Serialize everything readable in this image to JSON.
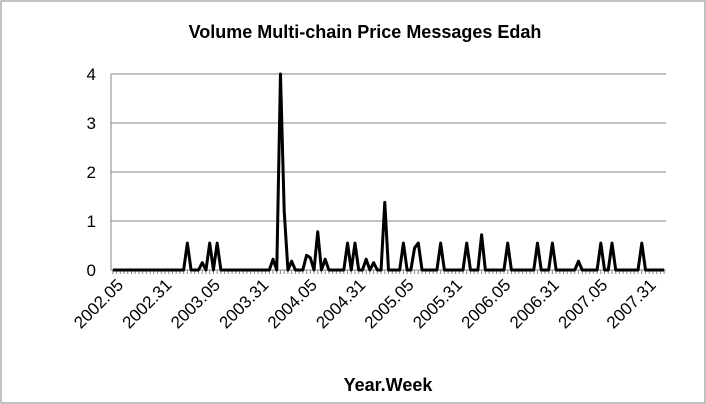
{
  "chart_data": {
    "type": "line",
    "title": "Volume Multi-chain Price Messages Edah",
    "x_label": "Year.Week",
    "categories": [
      null,
      null,
      "2002.05",
      null,
      null,
      null,
      null,
      null,
      null,
      null,
      null,
      null,
      null,
      null,
      null,
      "2002.31",
      null,
      null,
      null,
      null,
      null,
      null,
      null,
      null,
      null,
      null,
      null,
      null,
      "2003.05",
      null,
      null,
      null,
      null,
      null,
      null,
      null,
      null,
      null,
      null,
      null,
      null,
      "2003.31",
      null,
      null,
      null,
      null,
      null,
      null,
      null,
      null,
      null,
      null,
      null,
      null,
      "2004.05",
      null,
      null,
      null,
      null,
      null,
      null,
      null,
      null,
      null,
      null,
      null,
      null,
      "2004.31",
      null,
      null,
      null,
      null,
      null,
      null,
      null,
      null,
      null,
      null,
      null,
      null,
      "2005.05",
      null,
      null,
      null,
      null,
      null,
      null,
      null,
      null,
      null,
      null,
      null,
      null,
      "2005.31",
      null,
      null,
      null,
      null,
      null,
      null,
      null,
      null,
      null,
      null,
      null,
      null,
      "2006.05",
      null,
      null,
      null,
      null,
      null,
      null,
      null,
      null,
      null,
      null,
      null,
      null,
      "2006.31",
      null,
      null,
      null,
      null,
      null,
      null,
      null,
      null,
      null,
      null,
      null,
      null,
      "2007.05",
      null,
      null,
      null,
      null,
      null,
      null,
      null,
      null,
      null,
      null,
      null,
      null,
      "2007.31",
      null,
      null,
      null
    ],
    "series": [
      {
        "name": "Volume",
        "color": "#000000",
        "values": [
          0,
          0,
          0,
          0,
          0,
          0,
          0,
          0,
          0,
          0,
          0,
          0,
          0,
          0,
          0,
          0,
          0,
          0,
          0,
          0,
          0.55,
          0,
          0,
          0,
          0.15,
          0,
          0.55,
          0,
          0.55,
          0,
          0,
          0,
          0,
          0,
          0,
          0,
          0,
          0,
          0,
          0,
          0,
          0,
          0,
          0.22,
          0,
          4,
          1.2,
          0,
          0.18,
          0,
          0,
          0,
          0.3,
          0.25,
          0,
          0.78,
          0,
          0.22,
          0,
          0,
          0,
          0,
          0,
          0.55,
          0,
          0.55,
          0,
          0,
          0.22,
          0,
          0.15,
          0,
          0,
          1.38,
          0,
          0,
          0,
          0,
          0.55,
          0,
          0,
          0.45,
          0.55,
          0,
          0,
          0,
          0,
          0,
          0.55,
          0,
          0,
          0,
          0,
          0,
          0,
          0.55,
          0,
          0,
          0,
          0.72,
          0,
          0,
          0,
          0,
          0,
          0,
          0.55,
          0,
          0,
          0,
          0,
          0,
          0,
          0,
          0.55,
          0,
          0,
          0,
          0.55,
          0,
          0,
          0,
          0,
          0,
          0,
          0.18,
          0,
          0,
          0,
          0,
          0,
          0.55,
          0,
          0,
          0.55,
          0,
          0,
          0,
          0,
          0,
          0,
          0,
          0.55,
          0,
          0,
          0,
          0,
          0,
          0
        ]
      }
    ],
    "ylim": [
      0,
      4
    ],
    "yticks": [
      0,
      1,
      2,
      3,
      4
    ],
    "grid": true
  }
}
